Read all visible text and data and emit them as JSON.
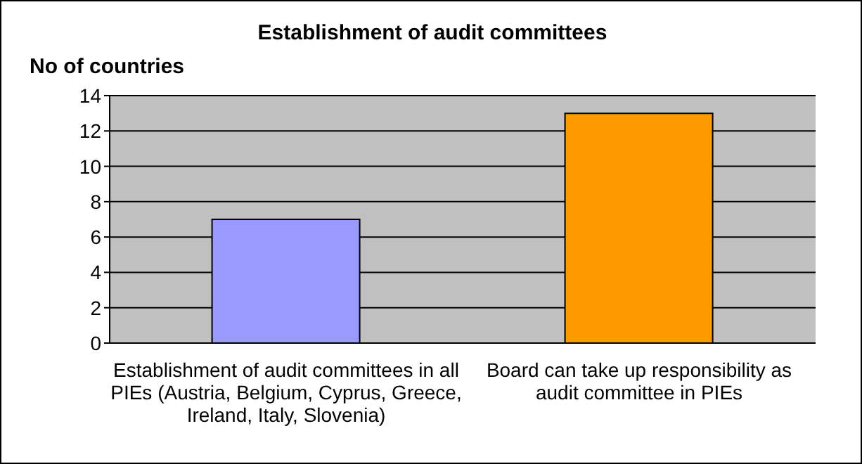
{
  "chart_data": {
    "type": "bar",
    "title": "Establishment of audit committees",
    "ylabel": "No of countries",
    "categories": [
      "Establishment of audit committees in all PIEs (Austria, Belgium, Cyprus, Greece, Ireland, Italy, Slovenia)",
      "Board can take up responsibility as audit committee in PIEs"
    ],
    "values": [
      7,
      13
    ],
    "colors": [
      "#9999ff",
      "#ff9900"
    ],
    "ylim": [
      0,
      14
    ],
    "yticks": [
      0,
      2,
      4,
      6,
      8,
      10,
      12,
      14
    ],
    "grid": "y"
  }
}
